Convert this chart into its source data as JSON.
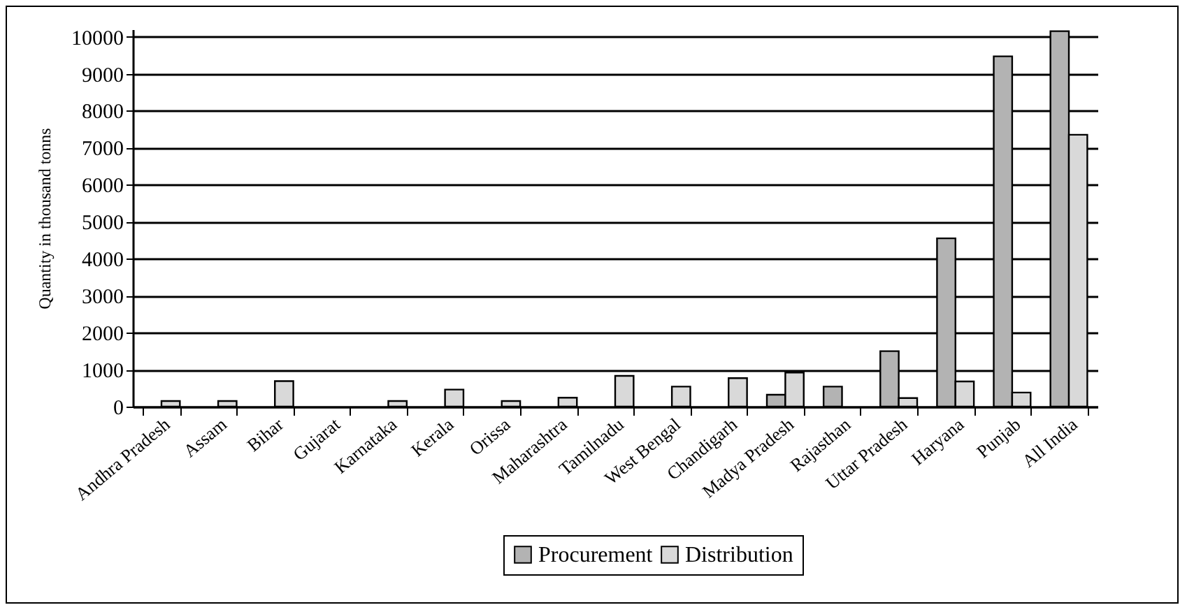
{
  "chart_data": {
    "type": "bar",
    "ylabel": "Quantity in thousand tonns",
    "categories": [
      "Andhra Pradesh",
      "Assam",
      "Bihar",
      "Gujarat",
      "Karnataka",
      "Kerala",
      "Orissa",
      "Maharashtra",
      "Tamilnadu",
      "West Bengal",
      "Chandigarh",
      "Madya Pradesh",
      "Rajasthan",
      "Uttar Pradesh",
      "Haryana",
      "Punjab",
      "All India"
    ],
    "series": [
      {
        "name": "Procurement",
        "color": "#b3b3b3",
        "values": [
          null,
          null,
          null,
          null,
          null,
          null,
          null,
          null,
          null,
          null,
          null,
          320,
          540,
          1500,
          4550,
          9470,
          10150
        ]
      },
      {
        "name": "Distribution",
        "color": "#d9d9d9",
        "values": [
          150,
          150,
          690,
          null,
          150,
          460,
          150,
          240,
          830,
          540,
          770,
          920,
          null,
          230,
          680,
          380,
          7350
        ]
      }
    ],
    "ylim": [
      0,
      10200
    ],
    "yticks": [
      0,
      1000,
      2000,
      3000,
      4000,
      5000,
      6000,
      7000,
      8000,
      9000,
      10000
    ],
    "grid": "y",
    "legend": "bottom"
  }
}
